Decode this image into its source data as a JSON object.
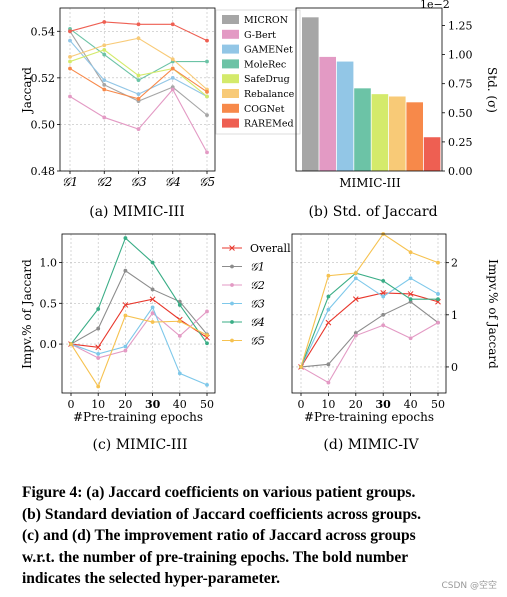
{
  "figure": {
    "caption_lines": [
      "Figure 4: (a) Jaccard coefficients on various patient groups.",
      "(b) Standard deviation of Jaccard coefficients across groups.",
      "(c) and (d) The improvement ratio of Jaccard across groups",
      "w.r.t. the number of pre-training epochs. The bold number",
      "indicates the selected hyper-parameter."
    ],
    "watermark": "CSDN @空空"
  },
  "chart_data": [
    {
      "id": "a",
      "type": "line",
      "panel_label": "(a) MIMIC-III",
      "title": "",
      "xlabel": "",
      "ylabel": "Jaccard",
      "categories": [
        "𝒢1",
        "𝒢2",
        "𝒢3",
        "𝒢4",
        "𝒢5"
      ],
      "ylim": [
        0.48,
        0.55
      ],
      "yticks": [
        "0.48",
        "0.50",
        "0.52",
        "0.54"
      ],
      "grid": true,
      "legend_position": "right",
      "series": [
        {
          "name": "MICRON",
          "color": "#a6a6a6",
          "values": [
            0.54,
            0.517,
            0.51,
            0.516,
            0.504
          ]
        },
        {
          "name": "G-Bert",
          "color": "#e39ac4",
          "values": [
            0.512,
            0.503,
            0.498,
            0.515,
            0.488
          ]
        },
        {
          "name": "GAMENet",
          "color": "#92c6e6",
          "values": [
            0.536,
            0.519,
            0.513,
            0.52,
            0.512
          ]
        },
        {
          "name": "MoleRec",
          "color": "#6cc3a6",
          "values": [
            0.541,
            0.53,
            0.519,
            0.527,
            0.527
          ]
        },
        {
          "name": "SafeDrug",
          "color": "#d4ea6b",
          "values": [
            0.527,
            0.532,
            0.521,
            0.524,
            0.512
          ]
        },
        {
          "name": "Rebalance",
          "color": "#f8ca77",
          "values": [
            0.529,
            0.534,
            0.537,
            0.528,
            0.515
          ]
        },
        {
          "name": "COGNet",
          "color": "#f7894a",
          "values": [
            0.524,
            0.515,
            0.511,
            0.524,
            0.514
          ]
        },
        {
          "name": "RAREMed",
          "color": "#ee5f52",
          "values": [
            0.54,
            0.544,
            0.543,
            0.543,
            0.536
          ]
        }
      ]
    },
    {
      "id": "b",
      "type": "bar",
      "panel_label": "(b) Std. of Jaccard",
      "title": "",
      "xlabel": "MIMIC-III",
      "ylabel": "Std. (σ)",
      "scale_label": "1e−2",
      "ylim": [
        0,
        1.4
      ],
      "yticks": [
        "0.00",
        "0.25",
        "0.50",
        "0.75",
        "1.00",
        "1.25"
      ],
      "categories": [
        "MICRON",
        "G-Bert",
        "GAMENet",
        "MoleRec",
        "SafeDrug",
        "Rebalance",
        "COGNet",
        "RAREMed"
      ],
      "values": [
        1.32,
        0.98,
        0.94,
        0.71,
        0.66,
        0.64,
        0.59,
        0.29
      ],
      "colors": [
        "#a6a6a6",
        "#e39ac4",
        "#92c6e6",
        "#6cc3a6",
        "#d4ea6b",
        "#f8ca77",
        "#f7894a",
        "#ee5f52"
      ]
    },
    {
      "id": "c",
      "type": "line",
      "panel_label": "(c) MIMIC-III",
      "title": "",
      "xlabel": "#Pre-training epochs",
      "ylabel": "Impv.% of Jaccard",
      "x": [
        0,
        10,
        20,
        30,
        40,
        50
      ],
      "xtick_labels": [
        "0",
        "10",
        "20",
        "30",
        "40",
        "50"
      ],
      "xtick_bold": "30",
      "ylim": [
        -0.6,
        1.35
      ],
      "yticks": [
        "0.0",
        "0.5",
        "1.0"
      ],
      "grid": true,
      "legend_position": "right",
      "series": [
        {
          "name": "Overall",
          "color": "#e8372c",
          "marker": "x",
          "values": [
            0,
            -0.04,
            0.48,
            0.55,
            0.3,
            0.08
          ]
        },
        {
          "name": "𝒢1",
          "color": "#8c8c8c",
          "marker": "dot",
          "values": [
            0,
            0.19,
            0.9,
            0.67,
            0.52,
            0.12
          ]
        },
        {
          "name": "𝒢2",
          "color": "#e39ac4",
          "marker": "dot",
          "values": [
            0,
            -0.17,
            -0.08,
            0.38,
            0.1,
            0.4
          ]
        },
        {
          "name": "𝒢3",
          "color": "#7ec8ea",
          "marker": "dot",
          "values": [
            0,
            -0.12,
            -0.03,
            0.45,
            -0.36,
            -0.5
          ]
        },
        {
          "name": "𝒢4",
          "color": "#3aad86",
          "marker": "dot",
          "values": [
            0,
            0.43,
            1.3,
            1.0,
            0.48,
            0.01
          ]
        },
        {
          "name": "𝒢5",
          "color": "#f6c250",
          "marker": "dot",
          "values": [
            0,
            -0.52,
            0.35,
            0.27,
            0.28,
            0.11
          ]
        }
      ]
    },
    {
      "id": "d",
      "type": "line",
      "panel_label": "(d) MIMIC-IV",
      "title": "",
      "xlabel": "#Pre-training epochs",
      "ylabel": "Impv.% of Jaccard",
      "x": [
        0,
        10,
        20,
        30,
        40,
        50
      ],
      "xtick_labels": [
        "0",
        "10",
        "20",
        "30",
        "40",
        "50"
      ],
      "xtick_bold": "30",
      "ylim": [
        -0.5,
        2.55
      ],
      "yticks": [
        "0",
        "1",
        "2"
      ],
      "grid": true,
      "series": [
        {
          "name": "Overall",
          "color": "#e8372c",
          "marker": "x",
          "values": [
            0,
            0.85,
            1.3,
            1.42,
            1.4,
            1.25
          ]
        },
        {
          "name": "𝒢1",
          "color": "#8c8c8c",
          "marker": "dot",
          "values": [
            0,
            0.05,
            0.65,
            1.0,
            1.25,
            0.85
          ]
        },
        {
          "name": "𝒢2",
          "color": "#e39ac4",
          "marker": "dot",
          "values": [
            0,
            -0.3,
            0.6,
            0.8,
            0.55,
            0.85
          ]
        },
        {
          "name": "𝒢3",
          "color": "#7ec8ea",
          "marker": "dot",
          "values": [
            0,
            1.1,
            1.7,
            1.35,
            1.7,
            1.4
          ]
        },
        {
          "name": "𝒢4",
          "color": "#3aad86",
          "marker": "dot",
          "values": [
            0,
            1.35,
            1.8,
            1.65,
            1.3,
            1.3
          ]
        },
        {
          "name": "𝒢5",
          "color": "#f6c250",
          "marker": "dot",
          "values": [
            0,
            1.75,
            1.8,
            2.55,
            2.2,
            2.0
          ]
        }
      ]
    }
  ]
}
